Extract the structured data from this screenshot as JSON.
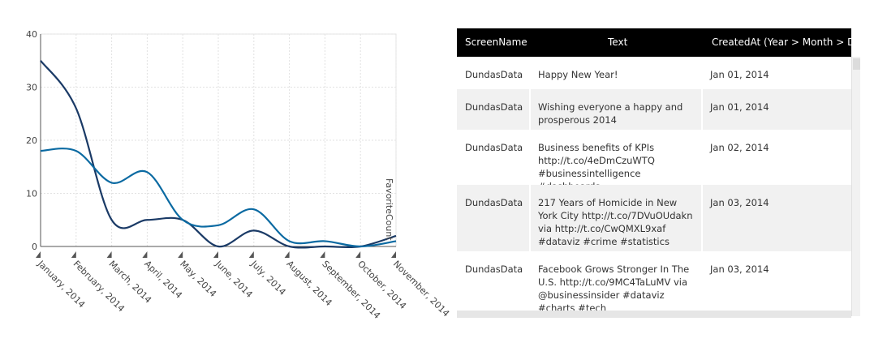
{
  "chart_data": {
    "type": "line",
    "categories": [
      "January, 2014",
      "February, 2014",
      "March, 2014",
      "April, 2014",
      "May, 2014",
      "June, 2014",
      "July, 2014",
      "August, 2014",
      "September, 2014",
      "October, 2014",
      "November, 2014"
    ],
    "series": [
      {
        "name": "",
        "color": "#1a3a66",
        "values": [
          35,
          26,
          5,
          5,
          5,
          0,
          3,
          0,
          0,
          0,
          2
        ]
      },
      {
        "name": "",
        "color": "#0b6aa2",
        "values": [
          18,
          18,
          12,
          14,
          5,
          4,
          7,
          1,
          1,
          0,
          1
        ]
      }
    ],
    "ylim": [
      0,
      40
    ],
    "yticks": [
      0,
      10,
      20,
      30,
      40
    ],
    "ylabel": "FavoriteCount",
    "xlabel": "",
    "grid": true
  },
  "table": {
    "columns": [
      "ScreenName",
      "Text",
      "CreatedAt (Year > Month > Day)"
    ],
    "rows": [
      {
        "screen_name": "DundasData",
        "text": "Happy New Year!",
        "created": "Jan 01, 2014"
      },
      {
        "screen_name": "DundasData",
        "text": "Wishing everyone a happy and prosperous 2014",
        "created": "Jan 01, 2014"
      },
      {
        "screen_name": "DundasData",
        "text": "Business benefits of KPIs http://t.co/4eDmCzuWTQ #businessintelligence #dashboards",
        "created": "Jan 02, 2014"
      },
      {
        "screen_name": "DundasData",
        "text": "217 Years of Homicide in New York City http://t.co/7DVuOUdakn via http://t.co/CwQMXL9xaf #dataviz #crime #statistics",
        "created": "Jan 03, 2014"
      },
      {
        "screen_name": "DundasData",
        "text": "Facebook Grows Stronger In The U.S. http://t.co/9MC4TaLuMV via @businessinsider #dataviz #charts #tech",
        "created": "Jan 03, 2014"
      }
    ]
  }
}
